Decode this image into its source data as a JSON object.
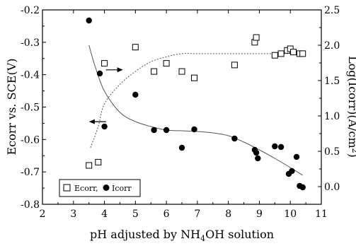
{
  "chart_data": {
    "type": "scatter",
    "xlabel": {
      "pre": "pH adjusted by NH",
      "sub": "4",
      "post": "OH solution"
    },
    "ylabel_left": "Ecorr vs. SCE(V)",
    "ylabel_right": {
      "pre": "Log(Icorr)(A/cm",
      "sup": "2",
      "post": ")"
    },
    "xlim": [
      2,
      11
    ],
    "ylim_left": [
      -0.8,
      -0.2
    ],
    "ylim_right": [
      -0.25,
      2.5
    ],
    "xticks": [
      "2",
      "3",
      "4",
      "5",
      "6",
      "7",
      "8",
      "9",
      "10",
      "11"
    ],
    "yticks_left": [
      "-0.2",
      "-0.3",
      "-0.4",
      "-0.5",
      "-0.6",
      "-0.7",
      "-0.8"
    ],
    "yticks_right": [
      "2.5",
      "2.0",
      "1.5",
      "1.0",
      "0.5",
      "0.0"
    ],
    "legend": {
      "ecorr_label": "Ecorr,",
      "icorr_label": "Icorr"
    },
    "series": [
      {
        "name": "Ecorr",
        "marker": "open-square",
        "axis": "left",
        "points": [
          [
            3.5,
            -0.68
          ],
          [
            3.8,
            -0.67
          ],
          [
            4.0,
            -0.365
          ],
          [
            5.0,
            -0.315
          ],
          [
            5.6,
            -0.39
          ],
          [
            6.0,
            -0.365
          ],
          [
            6.5,
            -0.39
          ],
          [
            6.9,
            -0.41
          ],
          [
            8.2,
            -0.37
          ],
          [
            8.85,
            -0.3
          ],
          [
            8.9,
            -0.285
          ],
          [
            9.5,
            -0.34
          ],
          [
            9.7,
            -0.335
          ],
          [
            9.9,
            -0.325
          ],
          [
            10.0,
            -0.32
          ],
          [
            10.1,
            -0.33
          ],
          [
            10.3,
            -0.335
          ],
          [
            10.4,
            -0.335
          ]
        ]
      },
      {
        "name": "Icorr",
        "marker": "filled-circle",
        "axis": "right",
        "points": [
          [
            3.5,
            2.35
          ],
          [
            3.85,
            1.6
          ],
          [
            4.0,
            0.85
          ],
          [
            5.0,
            1.3
          ],
          [
            5.6,
            0.8
          ],
          [
            6.0,
            0.8
          ],
          [
            6.5,
            0.55
          ],
          [
            6.9,
            0.81
          ],
          [
            8.2,
            0.68
          ],
          [
            8.85,
            0.52
          ],
          [
            8.9,
            0.48
          ],
          [
            8.95,
            0.4
          ],
          [
            9.5,
            0.57
          ],
          [
            9.7,
            0.56
          ],
          [
            9.95,
            0.18
          ],
          [
            10.05,
            0.22
          ],
          [
            10.2,
            0.42
          ],
          [
            10.3,
            0.01
          ],
          [
            10.4,
            -0.01
          ]
        ]
      }
    ],
    "trend_lines": [
      {
        "for": "Ecorr",
        "axis": "left",
        "style": "dashed",
        "points": [
          [
            3.55,
            -0.625
          ],
          [
            3.8,
            -0.56
          ],
          [
            4.0,
            -0.49
          ],
          [
            4.5,
            -0.43
          ],
          [
            5.0,
            -0.39
          ],
          [
            5.5,
            -0.36
          ],
          [
            6.0,
            -0.345
          ],
          [
            6.5,
            -0.335
          ],
          [
            7.0,
            -0.335
          ],
          [
            8.0,
            -0.335
          ],
          [
            9.0,
            -0.335
          ],
          [
            10.0,
            -0.335
          ],
          [
            10.4,
            -0.335
          ]
        ]
      },
      {
        "for": "Icorr",
        "axis": "right",
        "style": "solid",
        "points": [
          [
            3.5,
            2.0
          ],
          [
            3.7,
            1.7
          ],
          [
            4.0,
            1.35
          ],
          [
            4.5,
            1.05
          ],
          [
            5.0,
            0.92
          ],
          [
            5.5,
            0.85
          ],
          [
            6.0,
            0.8
          ],
          [
            6.5,
            0.79
          ],
          [
            7.0,
            0.78
          ],
          [
            7.5,
            0.76
          ],
          [
            8.0,
            0.72
          ],
          [
            8.5,
            0.63
          ],
          [
            9.0,
            0.52
          ],
          [
            9.5,
            0.4
          ],
          [
            10.0,
            0.27
          ],
          [
            10.4,
            0.16
          ]
        ]
      }
    ],
    "arrows": [
      {
        "direction": "left",
        "x": 3.55,
        "y_left": -0.545
      },
      {
        "direction": "right",
        "x": 4.55,
        "y_left": -0.385
      }
    ],
    "grid": false
  }
}
